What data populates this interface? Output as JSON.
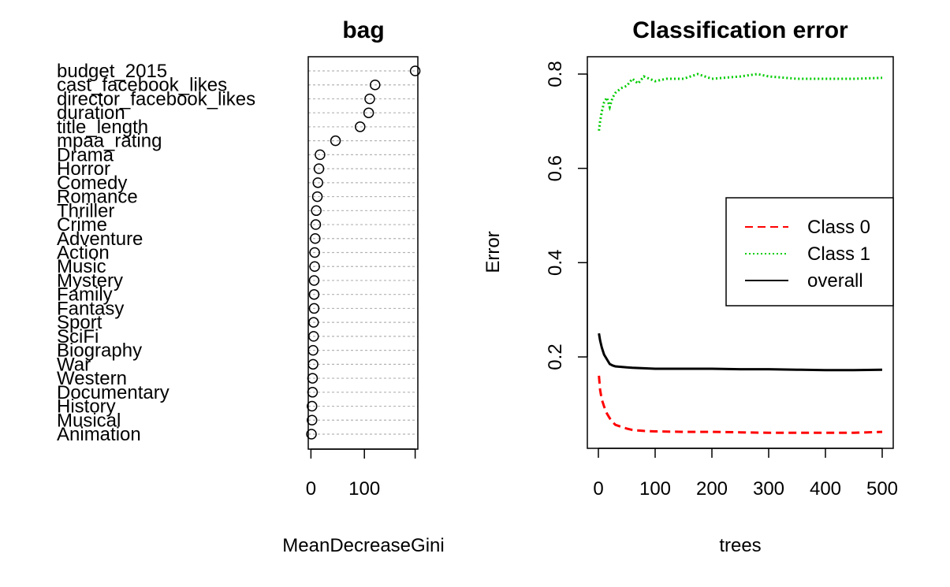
{
  "chart_data": [
    {
      "type": "scatter",
      "title": "bag",
      "xlabel": "MeanDecreaseGini",
      "ylabel": "",
      "xlim": [
        -5,
        200
      ],
      "xticks": [
        0,
        100
      ],
      "xtick_labels": [
        "0",
        "100"
      ],
      "grid": true,
      "categories": [
        "budget_2015",
        "cast_facebook_likes",
        "director_facebook_likes",
        "duration",
        "title_length",
        "mpaa_rating",
        "Drama",
        "Horror",
        "Comedy",
        "Romance",
        "Thriller",
        "Crime",
        "Adventure",
        "Action",
        "Music",
        "Mystery",
        "Family",
        "Fantasy",
        "Sport",
        "SciFi",
        "Biography",
        "War",
        "Western",
        "Documentary",
        "History",
        "Musical",
        "Animation"
      ],
      "values": [
        195,
        120,
        110,
        108,
        92,
        46,
        17,
        15,
        13,
        12,
        10,
        9,
        8,
        7,
        7,
        6,
        6,
        6,
        5,
        5,
        4,
        4,
        3,
        3,
        2,
        2,
        1
      ]
    },
    {
      "type": "line",
      "title": "Classification error",
      "xlabel": "trees",
      "ylabel": "Error",
      "xlim": [
        0,
        500
      ],
      "ylim": [
        0.02,
        0.83
      ],
      "xticks": [
        0,
        100,
        200,
        300,
        400,
        500
      ],
      "xtick_labels": [
        "0",
        "100",
        "200",
        "300",
        "400",
        "500"
      ],
      "yticks": [
        0.2,
        0.4,
        0.6,
        0.8
      ],
      "ytick_labels": [
        "0.2",
        "0.4",
        "0.6",
        "0.8"
      ],
      "legend_position": "right",
      "series": [
        {
          "name": "Class 0",
          "color": "#ff0000",
          "style": "dashed",
          "x": [
            1,
            3,
            6,
            10,
            15,
            20,
            25,
            30,
            40,
            50,
            60,
            80,
            100,
            150,
            200,
            250,
            300,
            350,
            400,
            450,
            500
          ],
          "y": [
            0.16,
            0.13,
            0.11,
            0.095,
            0.08,
            0.07,
            0.062,
            0.056,
            0.052,
            0.048,
            0.045,
            0.043,
            0.042,
            0.041,
            0.041,
            0.04,
            0.039,
            0.039,
            0.039,
            0.039,
            0.041
          ]
        },
        {
          "name": "Class 1",
          "color": "#00cc00",
          "style": "dotted",
          "x": [
            1,
            3,
            6,
            10,
            15,
            20,
            25,
            30,
            40,
            50,
            60,
            70,
            80,
            100,
            120,
            150,
            175,
            200,
            250,
            280,
            300,
            350,
            400,
            450,
            500
          ],
          "y": [
            0.68,
            0.7,
            0.72,
            0.74,
            0.75,
            0.73,
            0.75,
            0.76,
            0.77,
            0.775,
            0.79,
            0.78,
            0.795,
            0.785,
            0.79,
            0.79,
            0.8,
            0.79,
            0.795,
            0.8,
            0.795,
            0.79,
            0.79,
            0.79,
            0.792
          ]
        },
        {
          "name": "overall",
          "color": "#000000",
          "style": "solid",
          "x": [
            1,
            3,
            6,
            10,
            15,
            20,
            25,
            30,
            40,
            50,
            60,
            80,
            100,
            150,
            200,
            250,
            300,
            350,
            400,
            450,
            500
          ],
          "y": [
            0.25,
            0.235,
            0.22,
            0.205,
            0.195,
            0.185,
            0.182,
            0.18,
            0.179,
            0.178,
            0.177,
            0.176,
            0.175,
            0.175,
            0.175,
            0.174,
            0.174,
            0.173,
            0.172,
            0.172,
            0.173
          ]
        }
      ]
    }
  ]
}
